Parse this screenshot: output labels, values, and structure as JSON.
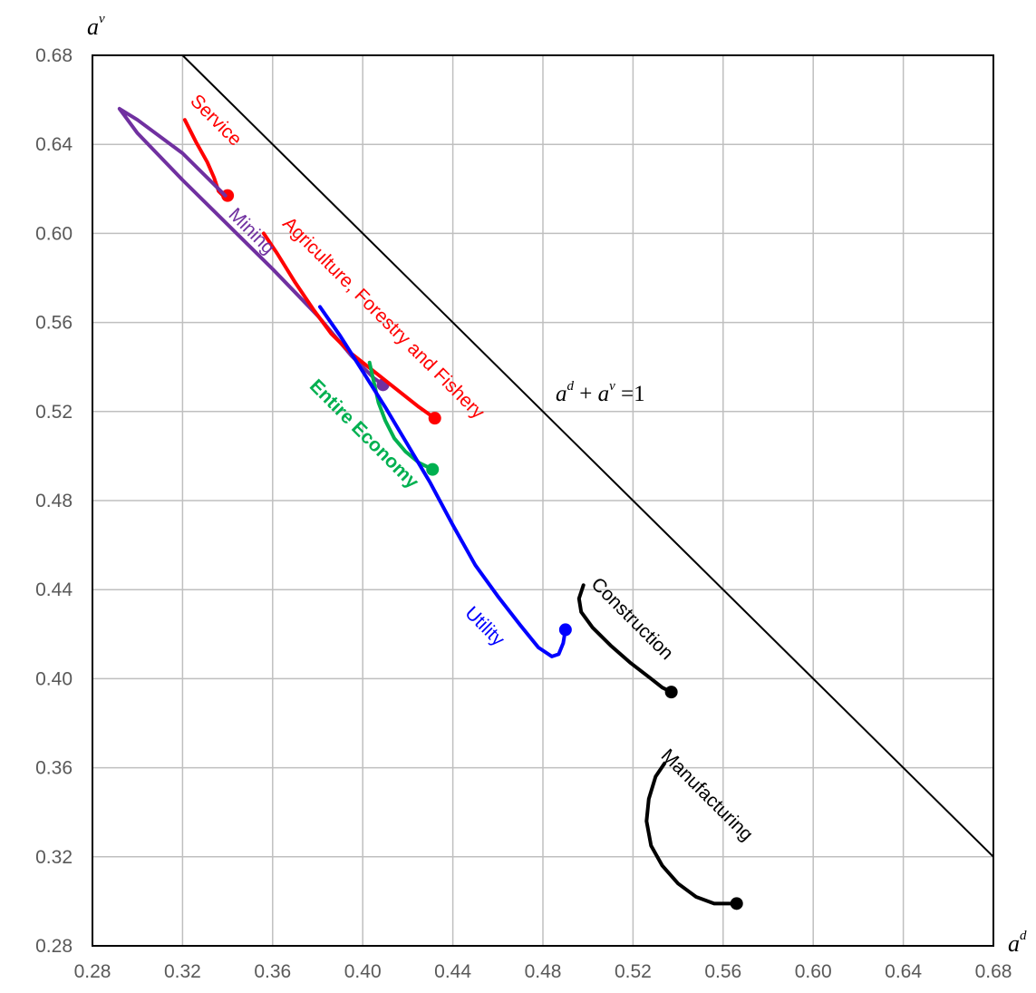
{
  "chart_data": {
    "type": "line",
    "xlabel": "a^d",
    "ylabel": "a^v",
    "xlim": [
      0.28,
      0.68
    ],
    "ylim": [
      0.28,
      0.68
    ],
    "grid": true,
    "x_ticks": [
      "0.28",
      "0.32",
      "0.36",
      "0.40",
      "0.44",
      "0.48",
      "0.52",
      "0.56",
      "0.60",
      "0.64",
      "0.68"
    ],
    "y_ticks": [
      "0.28",
      "0.32",
      "0.36",
      "0.40",
      "0.44",
      "0.48",
      "0.52",
      "0.56",
      "0.60",
      "0.64",
      "0.68"
    ],
    "reference_line": {
      "label": "a^d + a^v = 1",
      "points": [
        [
          0.32,
          0.68
        ],
        [
          0.68,
          0.32
        ]
      ],
      "color": "#000000"
    },
    "series": [
      {
        "name": "Service",
        "color": "#ff0000",
        "points": [
          [
            0.321,
            0.651
          ],
          [
            0.326,
            0.641
          ],
          [
            0.331,
            0.632
          ],
          [
            0.334,
            0.625
          ],
          [
            0.336,
            0.619
          ],
          [
            0.338,
            0.617
          ],
          [
            0.34,
            0.617
          ]
        ],
        "end_marker": true
      },
      {
        "name": "Mining",
        "color": "#7030a0",
        "points": [
          [
            0.339,
            0.617
          ],
          [
            0.32,
            0.636
          ],
          [
            0.3,
            0.651
          ],
          [
            0.292,
            0.656
          ],
          [
            0.3,
            0.645
          ],
          [
            0.32,
            0.624
          ],
          [
            0.34,
            0.604
          ],
          [
            0.36,
            0.584
          ],
          [
            0.38,
            0.563
          ],
          [
            0.395,
            0.545
          ],
          [
            0.405,
            0.535
          ],
          [
            0.409,
            0.532
          ]
        ],
        "end_marker": true
      },
      {
        "name": "Agriculture, Forestry and Fishery",
        "color": "#ff0000",
        "points": [
          [
            0.356,
            0.6
          ],
          [
            0.362,
            0.591
          ],
          [
            0.37,
            0.578
          ],
          [
            0.378,
            0.566
          ],
          [
            0.386,
            0.555
          ],
          [
            0.395,
            0.546
          ],
          [
            0.405,
            0.538
          ],
          [
            0.415,
            0.53
          ],
          [
            0.425,
            0.522
          ],
          [
            0.432,
            0.517
          ]
        ],
        "end_marker": true
      },
      {
        "name": "Entire Economy",
        "color": "#00b050",
        "points": [
          [
            0.403,
            0.542
          ],
          [
            0.405,
            0.533
          ],
          [
            0.407,
            0.524
          ],
          [
            0.41,
            0.516
          ],
          [
            0.414,
            0.508
          ],
          [
            0.419,
            0.502
          ],
          [
            0.425,
            0.497
          ],
          [
            0.431,
            0.494
          ]
        ],
        "end_marker": true
      },
      {
        "name": "Utility",
        "color": "#0000ff",
        "points": [
          [
            0.381,
            0.567
          ],
          [
            0.39,
            0.554
          ],
          [
            0.4,
            0.538
          ],
          [
            0.41,
            0.522
          ],
          [
            0.42,
            0.505
          ],
          [
            0.43,
            0.488
          ],
          [
            0.44,
            0.469
          ],
          [
            0.45,
            0.451
          ],
          [
            0.46,
            0.437
          ],
          [
            0.47,
            0.424
          ],
          [
            0.478,
            0.414
          ],
          [
            0.484,
            0.41
          ],
          [
            0.487,
            0.411
          ],
          [
            0.489,
            0.416
          ],
          [
            0.49,
            0.422
          ]
        ],
        "end_marker": true
      },
      {
        "name": "Construction",
        "color": "#000000",
        "points": [
          [
            0.498,
            0.442
          ],
          [
            0.496,
            0.436
          ],
          [
            0.497,
            0.43
          ],
          [
            0.502,
            0.423
          ],
          [
            0.51,
            0.415
          ],
          [
            0.519,
            0.407
          ],
          [
            0.528,
            0.4
          ],
          [
            0.533,
            0.396
          ],
          [
            0.537,
            0.394
          ]
        ],
        "end_marker": true
      },
      {
        "name": "Manufacturing",
        "color": "#000000",
        "points": [
          [
            0.534,
            0.362
          ],
          [
            0.53,
            0.356
          ],
          [
            0.527,
            0.346
          ],
          [
            0.526,
            0.336
          ],
          [
            0.528,
            0.325
          ],
          [
            0.533,
            0.316
          ],
          [
            0.54,
            0.308
          ],
          [
            0.548,
            0.302
          ],
          [
            0.556,
            0.299
          ],
          [
            0.562,
            0.299
          ],
          [
            0.566,
            0.299
          ]
        ],
        "end_marker": true
      }
    ],
    "annotations": [
      {
        "text": "Service",
        "color": "#ff0000",
        "x": 0.323,
        "y": 0.659,
        "rotate": 45,
        "weight": "normal"
      },
      {
        "text": "Mining",
        "color": "#7030a0",
        "x": 0.34,
        "y": 0.608,
        "rotate": 45,
        "weight": "normal"
      },
      {
        "text": "Agriculture, Forestry and Fishery",
        "color": "#ff0000",
        "x": 0.364,
        "y": 0.604,
        "rotate": 45,
        "weight": "normal"
      },
      {
        "text": "Entire Economy",
        "color": "#00b050",
        "x": 0.376,
        "y": 0.531,
        "rotate": 45,
        "weight": "bold"
      },
      {
        "text": "Utility",
        "color": "#0000ff",
        "x": 0.445,
        "y": 0.429,
        "rotate": 45,
        "weight": "normal"
      },
      {
        "text": "Construction",
        "color": "#000000",
        "x": 0.501,
        "y": 0.442,
        "rotate": 45,
        "weight": "normal"
      },
      {
        "text": "Manufacturing",
        "color": "#000000",
        "x": 0.532,
        "y": 0.365,
        "rotate": 45,
        "weight": "normal"
      }
    ]
  }
}
